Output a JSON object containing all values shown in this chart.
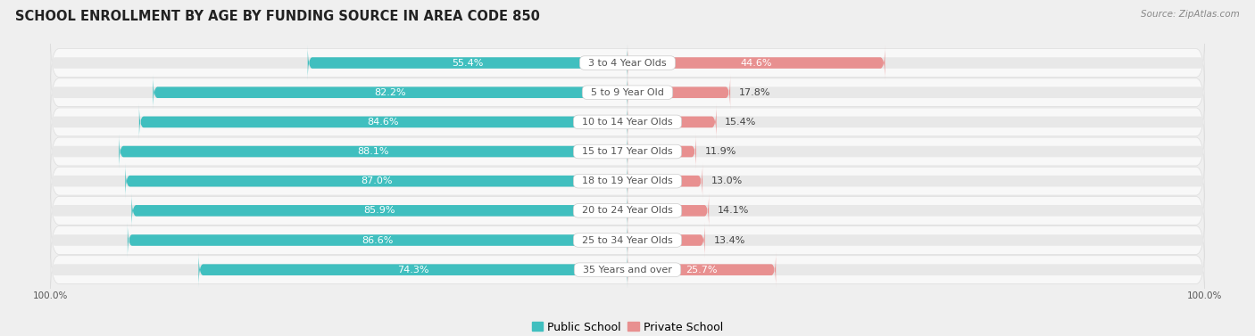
{
  "title": "SCHOOL ENROLLMENT BY AGE BY FUNDING SOURCE IN AREA CODE 850",
  "source": "Source: ZipAtlas.com",
  "categories": [
    "3 to 4 Year Olds",
    "5 to 9 Year Old",
    "10 to 14 Year Olds",
    "15 to 17 Year Olds",
    "18 to 19 Year Olds",
    "20 to 24 Year Olds",
    "25 to 34 Year Olds",
    "35 Years and over"
  ],
  "public_pct": [
    55.4,
    82.2,
    84.6,
    88.1,
    87.0,
    85.9,
    86.6,
    74.3
  ],
  "private_pct": [
    44.6,
    17.8,
    15.4,
    11.9,
    13.0,
    14.1,
    13.4,
    25.7
  ],
  "public_color": "#40bfbf",
  "private_color": "#e89090",
  "bg_color": "#efefef",
  "row_bg_color": "#f8f8f8",
  "row_border_color": "#dddddd",
  "bar_track_color": "#e8e8e8",
  "label_white": "#ffffff",
  "label_dark": "#444444",
  "center_label_color": "#555555",
  "title_fontsize": 10.5,
  "source_fontsize": 7.5,
  "bar_label_fontsize": 8,
  "cat_label_fontsize": 8,
  "legend_fontsize": 9,
  "axis_label_fontsize": 7.5
}
